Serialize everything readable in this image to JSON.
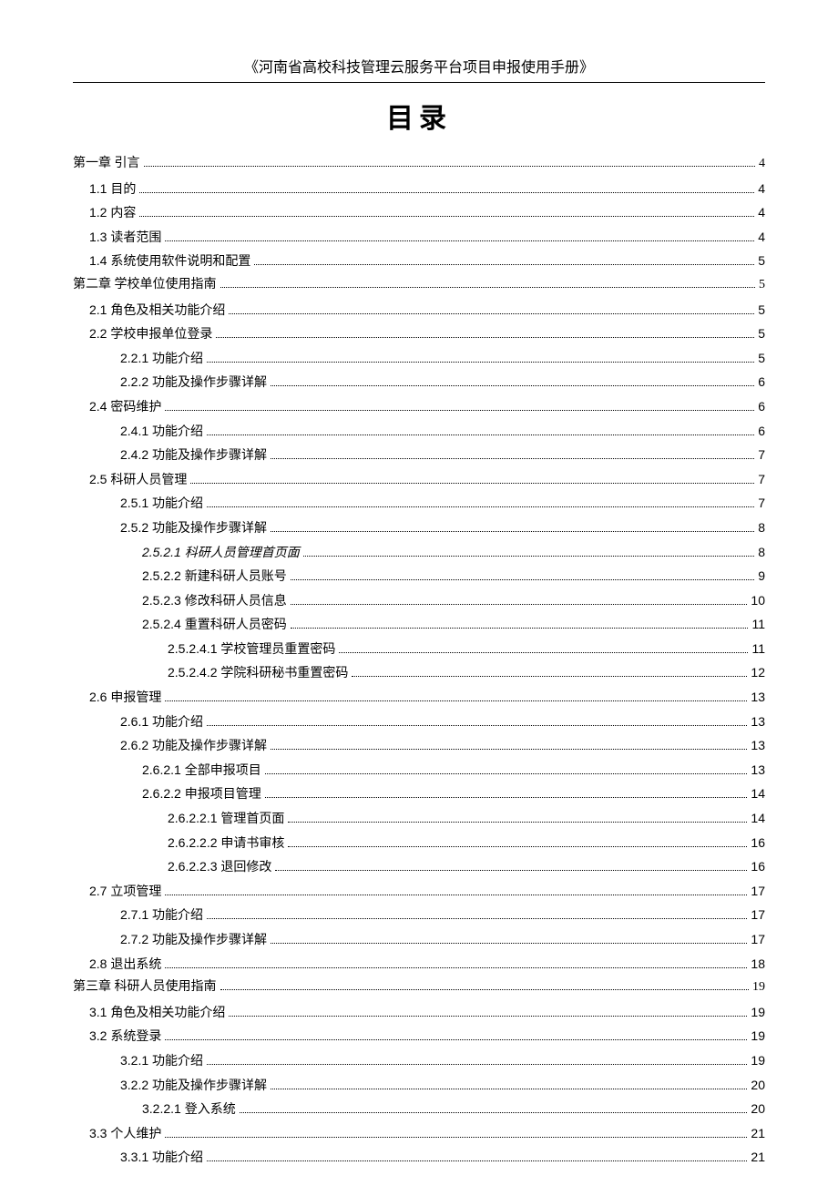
{
  "header_title": "《河南省高校科技管理云服务平台项目申报使用手册》",
  "toc_title": "目录",
  "toc": [
    {
      "level": 0,
      "label": "第一章 引言",
      "page": "4",
      "italic": false
    },
    {
      "level": 1,
      "label": "1.1 目的",
      "page": "4",
      "italic": false
    },
    {
      "level": 1,
      "label": "1.2 内容",
      "page": "4",
      "italic": false
    },
    {
      "level": 1,
      "label": "1.3 读者范围",
      "page": "4",
      "italic": false
    },
    {
      "level": 1,
      "label": "1.4 系统使用软件说明和配置",
      "page": "5",
      "italic": false
    },
    {
      "level": 0,
      "label": "第二章 学校单位使用指南",
      "page": "5",
      "italic": false
    },
    {
      "level": 1,
      "label": "2.1 角色及相关功能介绍",
      "page": "5",
      "italic": false
    },
    {
      "level": 1,
      "label": "2.2 学校申报单位登录",
      "page": "5",
      "italic": false
    },
    {
      "level": 2,
      "label": "2.2.1 功能介绍",
      "page": "5",
      "italic": false
    },
    {
      "level": 2,
      "label": "2.2.2 功能及操作步骤详解",
      "page": "6",
      "italic": false
    },
    {
      "level": 1,
      "label": "2.4 密码维护",
      "page": "6",
      "italic": false
    },
    {
      "level": 2,
      "label": "2.4.1 功能介绍",
      "page": "6",
      "italic": false
    },
    {
      "level": 2,
      "label": "2.4.2 功能及操作步骤详解",
      "page": "7",
      "italic": false
    },
    {
      "level": 1,
      "label": "2.5 科研人员管理",
      "page": "7",
      "italic": false
    },
    {
      "level": 2,
      "label": "2.5.1 功能介绍",
      "page": "7",
      "italic": false
    },
    {
      "level": 2,
      "label": "2.5.2 功能及操作步骤详解",
      "page": "8",
      "italic": false
    },
    {
      "level": 3,
      "label": "2.5.2.1 科研人员管理首页面",
      "page": "8",
      "italic": true
    },
    {
      "level": 3,
      "label": "2.5.2.2 新建科研人员账号",
      "page": "9",
      "italic": false
    },
    {
      "level": 3,
      "label": "2.5.2.3 修改科研人员信息",
      "page": "10",
      "italic": false
    },
    {
      "level": 3,
      "label": "2.5.2.4 重置科研人员密码",
      "page": "11",
      "italic": false
    },
    {
      "level": 4,
      "label": "2.5.2.4.1 学校管理员重置密码",
      "page": "11",
      "italic": false
    },
    {
      "level": 4,
      "label": "2.5.2.4.2 学院科研秘书重置密码",
      "page": "12",
      "italic": false
    },
    {
      "level": 1,
      "label": "2.6 申报管理",
      "page": "13",
      "italic": false
    },
    {
      "level": 2,
      "label": "2.6.1 功能介绍",
      "page": "13",
      "italic": false
    },
    {
      "level": 2,
      "label": "2.6.2 功能及操作步骤详解",
      "page": "13",
      "italic": false
    },
    {
      "level": 3,
      "label": "2.6.2.1 全部申报项目",
      "page": "13",
      "italic": false
    },
    {
      "level": 3,
      "label": "2.6.2.2 申报项目管理",
      "page": "14",
      "italic": false
    },
    {
      "level": 4,
      "label": "2.6.2.2.1 管理首页面",
      "page": "14",
      "italic": false
    },
    {
      "level": 4,
      "label": "2.6.2.2.2 申请书审核",
      "page": "16",
      "italic": false
    },
    {
      "level": 4,
      "label": "2.6.2.2.3 退回修改",
      "page": "16",
      "italic": false
    },
    {
      "level": 1,
      "label": "2.7 立项管理",
      "page": "17",
      "italic": false
    },
    {
      "level": 2,
      "label": "2.7.1 功能介绍",
      "page": "17",
      "italic": false
    },
    {
      "level": 2,
      "label": "2.7.2 功能及操作步骤详解",
      "page": "17",
      "italic": false
    },
    {
      "level": 1,
      "label": "2.8 退出系统",
      "page": "18",
      "italic": false
    },
    {
      "level": 0,
      "label": "第三章 科研人员使用指南",
      "page": "19",
      "italic": false
    },
    {
      "level": 1,
      "label": "3.1 角色及相关功能介绍",
      "page": "19",
      "italic": false
    },
    {
      "level": 1,
      "label": "3.2 系统登录",
      "page": "19",
      "italic": false
    },
    {
      "level": 2,
      "label": "3.2.1 功能介绍",
      "page": "19",
      "italic": false
    },
    {
      "level": 2,
      "label": "3.2.2 功能及操作步骤详解",
      "page": "20",
      "italic": false
    },
    {
      "level": 3,
      "label": "3.2.2.1 登入系统",
      "page": "20",
      "italic": false
    },
    {
      "level": 1,
      "label": "3.3 个人维护",
      "page": "21",
      "italic": false
    },
    {
      "level": 2,
      "label": "3.3.1 功能介绍",
      "page": "21",
      "italic": false
    }
  ]
}
